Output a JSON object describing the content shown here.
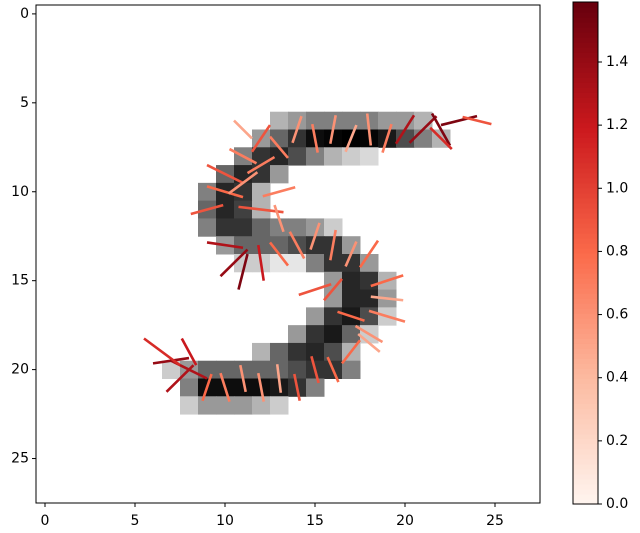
{
  "chart_data": {
    "type": "image_quiver",
    "xlim": [
      -0.5,
      27.5
    ],
    "ylim": [
      27.5,
      -0.5
    ],
    "xticks": [
      0,
      5,
      10,
      15,
      20,
      25
    ],
    "yticks": [
      0,
      5,
      10,
      15,
      20,
      25
    ],
    "image_colormap": "gray_r",
    "arrow_colormap": "Reds",
    "image": [
      {
        "row": 6,
        "col0": 13,
        "values": [
          0.3,
          0.4,
          0.5,
          0.5,
          0.5,
          0.5,
          0.4,
          0.4,
          0.3
        ]
      },
      {
        "row": 7,
        "col0": 12,
        "values": [
          0.4,
          0.6,
          0.8,
          0.95,
          0.98,
          1,
          0.98,
          0.9,
          0.7,
          0.5,
          0.3
        ]
      },
      {
        "row": 8,
        "col0": 11,
        "values": [
          0.5,
          0.8,
          0.85,
          0.7,
          0.5,
          0.3,
          0.2,
          0.15
        ]
      },
      {
        "row": 9,
        "col0": 10,
        "values": [
          0.6,
          0.85,
          0.8,
          0.4
        ]
      },
      {
        "row": 10,
        "col0": 9,
        "values": [
          0.5,
          0.85,
          0.8,
          0.3
        ]
      },
      {
        "row": 11,
        "col0": 9,
        "values": [
          0.6,
          0.85,
          0.75,
          0.3
        ]
      },
      {
        "row": 12,
        "col0": 9,
        "values": [
          0.5,
          0.8,
          0.8,
          0.6,
          0.5,
          0.5,
          0.4,
          0.2
        ]
      },
      {
        "row": 13,
        "col0": 10,
        "values": [
          0.4,
          0.6,
          0.6,
          0.6,
          0.7,
          0.8,
          0.8,
          0.4
        ]
      },
      {
        "row": 14,
        "col0": 11,
        "values": [
          0.2,
          0.2,
          0.1,
          0.1,
          0.5,
          0.8,
          0.8,
          0.4
        ]
      },
      {
        "row": 15,
        "col0": 16,
        "values": [
          0.4,
          0.85,
          0.8,
          0.3
        ]
      },
      {
        "row": 16,
        "col0": 16,
        "values": [
          0.4,
          0.85,
          0.85,
          0.4
        ]
      },
      {
        "row": 17,
        "col0": 15,
        "values": [
          0.4,
          0.8,
          0.9,
          0.7,
          0.2
        ]
      },
      {
        "row": 18,
        "col0": 14,
        "values": [
          0.4,
          0.8,
          0.9,
          0.6,
          0.2
        ]
      },
      {
        "row": 19,
        "col0": 12,
        "values": [
          0.3,
          0.6,
          0.8,
          0.85,
          0.7,
          0.3
        ]
      },
      {
        "row": 20,
        "col0": 7,
        "values": [
          0.2,
          0.4,
          0.6,
          0.6,
          0.6,
          0.6,
          0.6,
          0.7,
          0.8,
          0.8,
          0.5
        ]
      },
      {
        "row": 21,
        "col0": 8,
        "values": [
          0.5,
          0.95,
          0.95,
          0.95,
          0.95,
          0.9,
          0.8,
          0.5
        ]
      },
      {
        "row": 22,
        "col0": 8,
        "values": [
          0.2,
          0.4,
          0.4,
          0.4,
          0.3,
          0.2
        ]
      }
    ],
    "arrows": {
      "x": [
        12,
        13,
        14,
        15,
        16,
        17,
        18,
        19,
        20,
        21,
        22,
        23,
        24,
        22,
        11,
        11,
        10,
        10,
        11,
        12,
        9,
        13,
        12,
        13,
        10,
        10.5,
        11,
        12,
        13,
        14,
        15,
        16,
        17,
        18,
        16,
        15,
        19,
        19,
        19,
        18,
        18,
        17,
        17,
        15,
        14,
        13,
        12,
        11,
        10,
        9,
        8,
        7,
        6.5,
        7.5,
        8,
        16
      ],
      "y": [
        7,
        7.5,
        6.5,
        7,
        6.5,
        7,
        6.5,
        7,
        6.5,
        6.5,
        6.5,
        6,
        6,
        7,
        6.5,
        8,
        9,
        10,
        9.5,
        8.5,
        11,
        10,
        11,
        11.5,
        13,
        14,
        14.5,
        14,
        13.5,
        13,
        12.5,
        13,
        13.5,
        13.5,
        15.5,
        15.5,
        15,
        16,
        17,
        18,
        18.5,
        17,
        19,
        20,
        21,
        20.5,
        21,
        20.5,
        21,
        21,
        20,
        19.5,
        19,
        20.5,
        19,
        20
      ],
      "u": [
        1,
        -1,
        0.5,
        0.3,
        -0.3,
        0.6,
        0.2,
        -0.5,
        1,
        1.5,
        -1,
        2,
        1.6,
        1.2,
        -1,
        -1.5,
        -2,
        -2,
        1.6,
        1.5,
        -1.8,
        1.8,
        2.5,
        -0.5,
        -2,
        -1.5,
        -0.5,
        0.3,
        1,
        -0.8,
        0.5,
        -0.3,
        0.6,
        1,
        -1,
        -1.8,
        1.8,
        -1.8,
        2,
        -1.5,
        1.2,
        -1.5,
        -1,
        -0.4,
        0.3,
        -0.2,
        0.3,
        -0.3,
        0.5,
        -0.5,
        -2,
        -2,
        -2,
        -1.5,
        -0.8,
        0.6
      ],
      "v": [
        -1.5,
        -1.2,
        -1.5,
        1.6,
        1.6,
        -1.5,
        1.8,
        1.6,
        -1.6,
        -1.5,
        -1.8,
        -0.5,
        0.4,
        1.2,
        -1,
        -0.8,
        -1,
        -0.6,
        -1.2,
        -0.9,
        0.5,
        -0.5,
        0.3,
        -1.5,
        -0.3,
        1.5,
        2,
        2,
        1.3,
        -1.5,
        -1.5,
        1.7,
        -1.4,
        -1.5,
        1.2,
        0.6,
        -0.6,
        -0.2,
        0.6,
        -0.9,
        1,
        -0.5,
        1.3,
        -1.5,
        1.5,
        -1.6,
        1.6,
        -1.5,
        1.6,
        1.5,
        -1,
        0.3,
        -1.5,
        1.5,
        -1.5,
        1.4
      ],
      "magnitude": [
        0.9,
        0.7,
        0.6,
        0.7,
        0.6,
        0.5,
        0.6,
        0.7,
        1.3,
        1.4,
        1.5,
        1.5,
        0.9,
        1.1,
        0.5,
        0.7,
        0.9,
        0.8,
        0.6,
        0.7,
        0.9,
        0.7,
        0.9,
        0.6,
        1.3,
        1.4,
        1.5,
        1.2,
        0.8,
        0.7,
        0.6,
        0.7,
        0.6,
        0.8,
        0.9,
        0.9,
        0.8,
        0.5,
        0.7,
        0.6,
        0.5,
        0.8,
        0.8,
        0.9,
        0.9,
        0.5,
        0.6,
        0.6,
        0.7,
        0.8,
        1.3,
        1.4,
        1.1,
        1.3,
        1.2,
        0.8
      ]
    },
    "colorbar": {
      "lim": [
        0,
        1.59
      ],
      "ticks": [
        {
          "value": 0,
          "label": "0.0"
        },
        0.2,
        0.4,
        0.6,
        0.8,
        {
          "value": 1,
          "label": "1.0"
        },
        1.2,
        1.4
      ]
    }
  }
}
